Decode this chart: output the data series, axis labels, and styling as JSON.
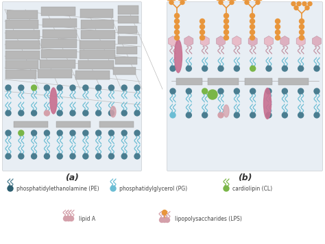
{
  "bg_color": "#ffffff",
  "panel_bg": "#e8eef4",
  "title_a": "(a)",
  "title_b": "(b)",
  "pe_color": "#4a7d90",
  "pe_dark": "#2d5f70",
  "pg_color": "#6bbdd4",
  "cl_color": "#7ab648",
  "lipid_a_color": "#d4a0aa",
  "lps_orange": "#e8963c",
  "prot_color": "#c87090",
  "gray_box_color": "#aaaaaa",
  "pink_hex_color": "#e8b8c8",
  "legend_labels": [
    "phosphatidylethanolamine (PE)",
    "phosphatidylglycerol (PG)",
    "cardiolipin (CL)",
    "lipid A",
    "lipopolysaccharides (LPS)"
  ]
}
